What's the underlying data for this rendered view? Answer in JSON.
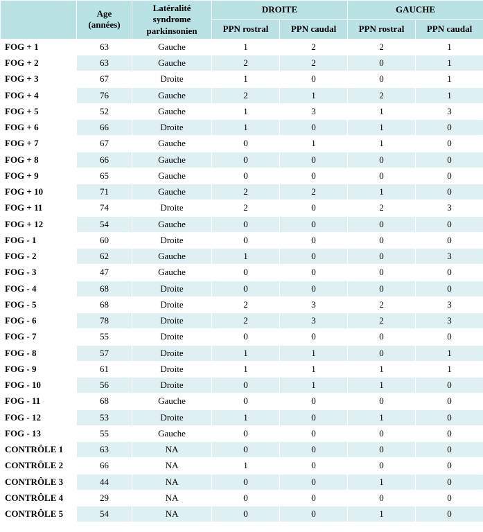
{
  "headers": {
    "blank": "",
    "age": "Age (années)",
    "lat": "Latéralité syndrome parkinsonien",
    "droite": "DROITE",
    "gauche": "GAUCHE",
    "ppn_rostral": "PPN rostral",
    "ppn_caudal": "PPN caudal"
  },
  "colors": {
    "header_bg": "#b8e2e4",
    "row_odd_bg": "#ffffff",
    "row_even_bg": "#def0f1",
    "border": "#ffffff"
  },
  "rows": [
    {
      "label": "FOG + 1",
      "age": "63",
      "lat": "Gauche",
      "dr_r": "1",
      "dr_c": "2",
      "ga_r": "2",
      "ga_c": "1"
    },
    {
      "label": "FOG + 2",
      "age": "63",
      "lat": "Gauche",
      "dr_r": "2",
      "dr_c": "2",
      "ga_r": "0",
      "ga_c": "1"
    },
    {
      "label": "FOG + 3",
      "age": "67",
      "lat": "Droite",
      "dr_r": "1",
      "dr_c": "0",
      "ga_r": "0",
      "ga_c": "1"
    },
    {
      "label": "FOG + 4",
      "age": "76",
      "lat": "Gauche",
      "dr_r": "2",
      "dr_c": "1",
      "ga_r": "2",
      "ga_c": "1"
    },
    {
      "label": "FOG + 5",
      "age": "52",
      "lat": "Gauche",
      "dr_r": "1",
      "dr_c": "3",
      "ga_r": "1",
      "ga_c": "3"
    },
    {
      "label": "FOG + 6",
      "age": "66",
      "lat": "Droite",
      "dr_r": "1",
      "dr_c": "0",
      "ga_r": "1",
      "ga_c": "0"
    },
    {
      "label": "FOG + 7",
      "age": "67",
      "lat": "Gauche",
      "dr_r": "0",
      "dr_c": "1",
      "ga_r": "1",
      "ga_c": "0"
    },
    {
      "label": "FOG + 8",
      "age": "66",
      "lat": "Gauche",
      "dr_r": "0",
      "dr_c": "0",
      "ga_r": "0",
      "ga_c": "0"
    },
    {
      "label": "FOG + 9",
      "age": "65",
      "lat": "Gauche",
      "dr_r": "0",
      "dr_c": "0",
      "ga_r": "0",
      "ga_c": "0"
    },
    {
      "label": "FOG + 10",
      "age": "71",
      "lat": "Gauche",
      "dr_r": "2",
      "dr_c": "2",
      "ga_r": "1",
      "ga_c": "0"
    },
    {
      "label": "FOG + 11",
      "age": "74",
      "lat": "Droite",
      "dr_r": "2",
      "dr_c": "0",
      "ga_r": "2",
      "ga_c": "3"
    },
    {
      "label": "FOG + 12",
      "age": "54",
      "lat": "Gauche",
      "dr_r": "0",
      "dr_c": "0",
      "ga_r": "0",
      "ga_c": "0"
    },
    {
      "label": "FOG - 1",
      "age": "60",
      "lat": "Droite",
      "dr_r": "0",
      "dr_c": "0",
      "ga_r": "0",
      "ga_c": "0"
    },
    {
      "label": "FOG - 2",
      "age": "62",
      "lat": "Gauche",
      "dr_r": "1",
      "dr_c": "0",
      "ga_r": "0",
      "ga_c": "3"
    },
    {
      "label": "FOG - 3",
      "age": "47",
      "lat": "Gauche",
      "dr_r": "0",
      "dr_c": "0",
      "ga_r": "0",
      "ga_c": "0"
    },
    {
      "label": "FOG - 4",
      "age": "68",
      "lat": "Droite",
      "dr_r": "0",
      "dr_c": "0",
      "ga_r": "0",
      "ga_c": "0"
    },
    {
      "label": "FOG - 5",
      "age": "68",
      "lat": "Droite",
      "dr_r": "2",
      "dr_c": "3",
      "ga_r": "2",
      "ga_c": "3"
    },
    {
      "label": "FOG - 6",
      "age": "78",
      "lat": "Droite",
      "dr_r": "2",
      "dr_c": "3",
      "ga_r": "2",
      "ga_c": "3"
    },
    {
      "label": "FOG - 7",
      "age": "55",
      "lat": "Droite",
      "dr_r": "0",
      "dr_c": "0",
      "ga_r": "0",
      "ga_c": "0"
    },
    {
      "label": "FOG - 8",
      "age": "57",
      "lat": "Droite",
      "dr_r": "1",
      "dr_c": "1",
      "ga_r": "0",
      "ga_c": "1"
    },
    {
      "label": "FOG - 9",
      "age": "61",
      "lat": "Droite",
      "dr_r": "1",
      "dr_c": "1",
      "ga_r": "1",
      "ga_c": "1"
    },
    {
      "label": "FOG - 10",
      "age": "56",
      "lat": "Droite",
      "dr_r": "0",
      "dr_c": "1",
      "ga_r": "1",
      "ga_c": "0"
    },
    {
      "label": "FOG - 11",
      "age": "68",
      "lat": "Gauche",
      "dr_r": "0",
      "dr_c": "0",
      "ga_r": "0",
      "ga_c": "0"
    },
    {
      "label": "FOG - 12",
      "age": "53",
      "lat": "Droite",
      "dr_r": "1",
      "dr_c": "0",
      "ga_r": "1",
      "ga_c": "0"
    },
    {
      "label": "FOG - 13",
      "age": "55",
      "lat": "Gauche",
      "dr_r": "0",
      "dr_c": "0",
      "ga_r": "0",
      "ga_c": "0"
    },
    {
      "label": "CONTRÔLE 1",
      "age": "63",
      "lat": "NA",
      "dr_r": "0",
      "dr_c": "0",
      "ga_r": "0",
      "ga_c": "0"
    },
    {
      "label": "CONTRÔLE 2",
      "age": "66",
      "lat": "NA",
      "dr_r": "1",
      "dr_c": "0",
      "ga_r": "0",
      "ga_c": "0"
    },
    {
      "label": "CONTRÔLE 3",
      "age": "44",
      "lat": "NA",
      "dr_r": "0",
      "dr_c": "0",
      "ga_r": "1",
      "ga_c": "0"
    },
    {
      "label": "CONTRÔLE 4",
      "age": "29",
      "lat": "NA",
      "dr_r": "0",
      "dr_c": "0",
      "ga_r": "0",
      "ga_c": "0"
    },
    {
      "label": "CONTRÔLE 5",
      "age": "54",
      "lat": "NA",
      "dr_r": "0",
      "dr_c": "0",
      "ga_r": "1",
      "ga_c": "0"
    }
  ]
}
